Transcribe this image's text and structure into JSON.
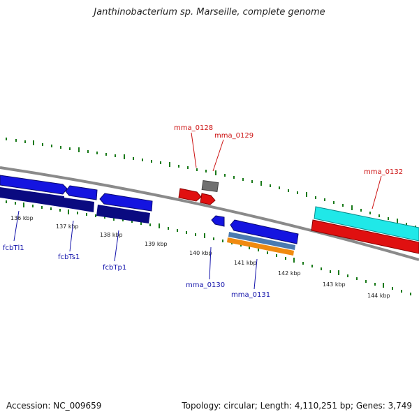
{
  "title": "Janthinobacterium sp. Marseille, complete genome",
  "accession": "Accession: NC_009659",
  "summary": "Topology: circular; Length: 4,110,251 bp; Genes: 3,749",
  "ticks": [
    "136 kbp",
    "137 kbp",
    "138 kbp",
    "139 kbp",
    "140 kbp",
    "141 kbp",
    "142 kbp",
    "143 kbp",
    "144 kbp"
  ],
  "gene_labels": {
    "mma_0128": "mma_0128",
    "mma_0129": "mma_0129",
    "mma_0132": "mma_0132",
    "mma_0130": "mma_0130",
    "mma_0131": "mma_0131",
    "fcbTl1": "fcbTl1",
    "fcbTs1": "fcbTs1",
    "fcbTp1": "fcbTp1"
  },
  "colors": {
    "tick_green": "#1a7a1a",
    "backbone": "#8a8a8a",
    "forward_red": "#e01010",
    "forward_cyan": "#20e8e8",
    "reverse_blue": "#1414e0",
    "reverse_navy": "#0a0a80",
    "label_red": "#cc1111",
    "label_blue": "#1111aa",
    "orange": "#f08a10",
    "steel": "#4a7ab0",
    "grey_gene": "#707070"
  }
}
